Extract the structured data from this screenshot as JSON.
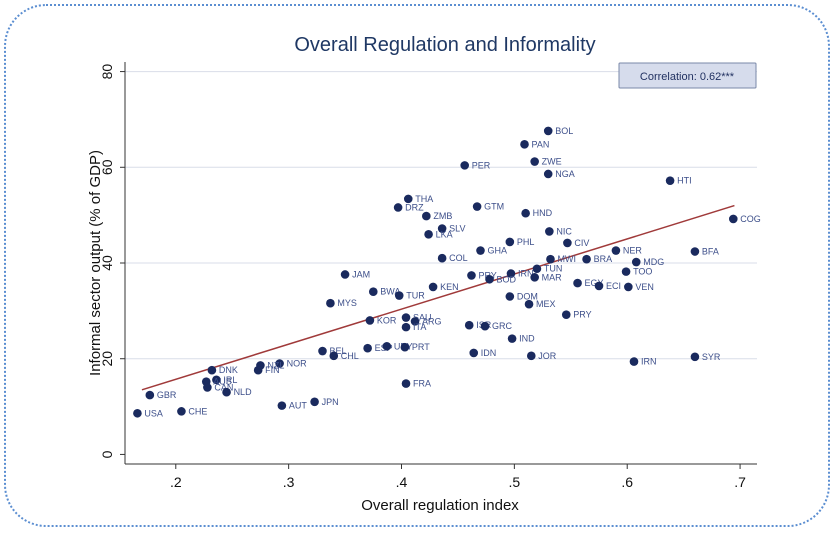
{
  "colors": {
    "frame": "#5b8ed1",
    "points": "#1a2a5e",
    "fit_line": "#a03a3a",
    "grid": "#d9dde8",
    "corr_box_fill": "#d6dcec",
    "corr_box_stroke": "#7a88a8"
  },
  "chart_data": {
    "type": "scatter",
    "title": "Overall Regulation and Informality",
    "xlabel": "Overall regulation index",
    "ylabel": "Informal sector output (% of GDP)",
    "x_ticks": [
      ".2",
      ".3",
      ".4",
      ".5",
      ".6",
      ".7"
    ],
    "x_tick_values": [
      0.2,
      0.3,
      0.4,
      0.5,
      0.6,
      0.7
    ],
    "y_ticks": [
      "0",
      "20",
      "40",
      "60",
      "80"
    ],
    "y_tick_values": [
      0,
      20,
      40,
      60,
      80
    ],
    "xlim": [
      0.155,
      0.715
    ],
    "ylim": [
      -2,
      82
    ],
    "grid": "horizontal",
    "annotation": "Correlation: 0.62***",
    "fit_line": {
      "x": [
        0.17,
        0.695
      ],
      "y": [
        13.5,
        52
      ]
    },
    "points": [
      {
        "label": "BOL",
        "x": 0.53,
        "y": 67.6
      },
      {
        "label": "PAN",
        "x": 0.509,
        "y": 64.8
      },
      {
        "label": "ZWE",
        "x": 0.518,
        "y": 61.2
      },
      {
        "label": "PER",
        "x": 0.456,
        "y": 60.4
      },
      {
        "label": "NGA",
        "x": 0.53,
        "y": 58.6
      },
      {
        "label": "HTI",
        "x": 0.638,
        "y": 57.2
      },
      {
        "label": "THA",
        "x": 0.406,
        "y": 53.4
      },
      {
        "label": "DRZ",
        "x": 0.397,
        "y": 51.6
      },
      {
        "label": "GTM",
        "x": 0.467,
        "y": 51.8
      },
      {
        "label": "HND",
        "x": 0.51,
        "y": 50.4
      },
      {
        "label": "ZMB",
        "x": 0.422,
        "y": 49.8
      },
      {
        "label": "COG",
        "x": 0.694,
        "y": 49.2
      },
      {
        "label": "SLV",
        "x": 0.436,
        "y": 47.2
      },
      {
        "label": "NIC",
        "x": 0.531,
        "y": 46.6
      },
      {
        "label": "LKA",
        "x": 0.424,
        "y": 46.0
      },
      {
        "label": "PHL",
        "x": 0.496,
        "y": 44.4
      },
      {
        "label": "CIV",
        "x": 0.547,
        "y": 44.2
      },
      {
        "label": "GHA",
        "x": 0.47,
        "y": 42.6
      },
      {
        "label": "NER",
        "x": 0.59,
        "y": 42.6
      },
      {
        "label": "BFA",
        "x": 0.66,
        "y": 42.4
      },
      {
        "label": "COL",
        "x": 0.436,
        "y": 41.0
      },
      {
        "label": "MWI",
        "x": 0.532,
        "y": 40.8
      },
      {
        "label": "BRA",
        "x": 0.564,
        "y": 40.8
      },
      {
        "label": "MDG",
        "x": 0.608,
        "y": 40.2
      },
      {
        "label": "TUN",
        "x": 0.52,
        "y": 38.8
      },
      {
        "label": "TOO",
        "x": 0.599,
        "y": 38.2
      },
      {
        "label": "JAM",
        "x": 0.35,
        "y": 37.6
      },
      {
        "label": "PRY",
        "x": 0.462,
        "y": 37.4
      },
      {
        "label": "IRN",
        "x": 0.497,
        "y": 37.8
      },
      {
        "label": "MAR",
        "x": 0.518,
        "y": 37.0
      },
      {
        "label": "BOD",
        "x": 0.478,
        "y": 36.6
      },
      {
        "label": "EGY",
        "x": 0.556,
        "y": 35.8
      },
      {
        "label": "ECI",
        "x": 0.575,
        "y": 35.2
      },
      {
        "label": "VEN",
        "x": 0.601,
        "y": 35.0
      },
      {
        "label": "KEN",
        "x": 0.428,
        "y": 35.0
      },
      {
        "label": "BWA",
        "x": 0.375,
        "y": 34.0
      },
      {
        "label": "TUR",
        "x": 0.398,
        "y": 33.2
      },
      {
        "label": "DOM",
        "x": 0.496,
        "y": 33.0
      },
      {
        "label": "MYS",
        "x": 0.337,
        "y": 31.6
      },
      {
        "label": "MEX",
        "x": 0.513,
        "y": 31.4
      },
      {
        "label": "PRY",
        "x": 0.546,
        "y": 29.2
      },
      {
        "label": "KOR",
        "x": 0.372,
        "y": 28.0
      },
      {
        "label": "SAU",
        "x": 0.404,
        "y": 28.6
      },
      {
        "label": "ARG",
        "x": 0.412,
        "y": 27.8
      },
      {
        "label": "ITA",
        "x": 0.404,
        "y": 26.6
      },
      {
        "label": "ISR",
        "x": 0.46,
        "y": 27.0
      },
      {
        "label": "GRC",
        "x": 0.474,
        "y": 26.8
      },
      {
        "label": "IND",
        "x": 0.498,
        "y": 24.2
      },
      {
        "label": "BEL",
        "x": 0.33,
        "y": 21.6
      },
      {
        "label": "ESP",
        "x": 0.37,
        "y": 22.2
      },
      {
        "label": "CHL",
        "x": 0.34,
        "y": 20.6
      },
      {
        "label": "URY",
        "x": 0.387,
        "y": 22.6
      },
      {
        "label": "PRT",
        "x": 0.403,
        "y": 22.4
      },
      {
        "label": "IDN",
        "x": 0.464,
        "y": 21.2
      },
      {
        "label": "JOR",
        "x": 0.515,
        "y": 20.6
      },
      {
        "label": "SYR",
        "x": 0.66,
        "y": 20.4
      },
      {
        "label": "IRN",
        "x": 0.606,
        "y": 19.4
      },
      {
        "label": "NOR",
        "x": 0.292,
        "y": 19.0
      },
      {
        "label": "NZL",
        "x": 0.275,
        "y": 18.6
      },
      {
        "label": "FIN",
        "x": 0.273,
        "y": 17.6
      },
      {
        "label": "DNK",
        "x": 0.232,
        "y": 17.6
      },
      {
        "label": "IRL",
        "x": 0.236,
        "y": 15.6
      },
      {
        "label": "AUS",
        "x": 0.227,
        "y": 15.2
      },
      {
        "label": "CAN",
        "x": 0.228,
        "y": 14.0
      },
      {
        "label": "FRA",
        "x": 0.404,
        "y": 14.8
      },
      {
        "label": "NLD",
        "x": 0.245,
        "y": 13.0
      },
      {
        "label": "GBR",
        "x": 0.177,
        "y": 12.4
      },
      {
        "label": "JPN",
        "x": 0.323,
        "y": 11.0
      },
      {
        "label": "AUT",
        "x": 0.294,
        "y": 10.2
      },
      {
        "label": "CHE",
        "x": 0.205,
        "y": 9.0
      },
      {
        "label": "USA",
        "x": 0.166,
        "y": 8.6
      }
    ]
  }
}
